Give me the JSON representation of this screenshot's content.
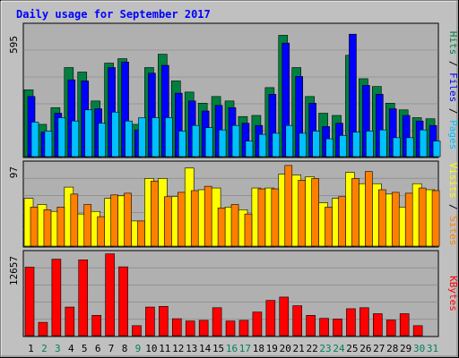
{
  "title": "Daily usage for September 2017",
  "colors": {
    "background": "#C0C0C0",
    "panel": "#B0B0B0",
    "grid": "#808080",
    "title": "#0000FF",
    "hits": "#008040",
    "files": "#0000FF",
    "pages": "#00C0FF",
    "visits": "#FFFF00",
    "sites": "#FF8000",
    "kbytes": "#FF0000",
    "weekday": "#000000",
    "weekend": "#00805C"
  },
  "chart_data": [
    {
      "type": "bar",
      "name": "hits-files-pages",
      "ymax_label": "595",
      "ymax": 595,
      "legend": [
        {
          "key": "pages",
          "label": "Pages"
        },
        {
          "key": "files",
          "label": "Files"
        },
        {
          "key": "hits",
          "label": "Hits"
        }
      ],
      "series": [
        {
          "key": "hits",
          "values": [
            300,
            145,
            220,
            400,
            380,
            250,
            420,
            440,
            145,
            400,
            460,
            340,
            290,
            240,
            270,
            250,
            180,
            185,
            310,
            545,
            400,
            270,
            195,
            185,
            455,
            350,
            315,
            240,
            210,
            175,
            170
          ]
        },
        {
          "key": "files",
          "values": [
            270,
            110,
            195,
            345,
            340,
            215,
            400,
            425,
            120,
            375,
            410,
            285,
            250,
            205,
            230,
            220,
            150,
            140,
            280,
            510,
            360,
            240,
            135,
            150,
            550,
            320,
            280,
            215,
            185,
            160,
            140
          ]
        },
        {
          "key": "pages",
          "values": [
            155,
            115,
            175,
            160,
            210,
            150,
            200,
            160,
            175,
            175,
            175,
            115,
            140,
            130,
            120,
            140,
            70,
            100,
            105,
            140,
            105,
            115,
            80,
            95,
            110,
            115,
            120,
            85,
            85,
            120,
            70
          ]
        }
      ]
    },
    {
      "type": "bar",
      "name": "visits-sites",
      "ymax_label": "97",
      "ymax": 97,
      "legend": [
        {
          "key": "sites",
          "label": "Sites"
        },
        {
          "key": "visits",
          "label": "Visits"
        }
      ],
      "series": [
        {
          "key": "visits",
          "values": [
            55,
            48,
            40,
            68,
            37,
            40,
            55,
            58,
            29,
            78,
            78,
            57,
            90,
            65,
            67,
            45,
            42,
            67,
            67,
            83,
            82,
            80,
            50,
            55,
            85,
            72,
            72,
            60,
            45,
            72,
            65
          ]
        },
        {
          "key": "sites",
          "values": [
            45,
            42,
            45,
            60,
            48,
            34,
            59,
            61,
            29,
            75,
            57,
            62,
            64,
            69,
            44,
            48,
            37,
            66,
            66,
            93,
            76,
            78,
            45,
            57,
            78,
            86,
            65,
            62,
            61,
            67,
            64
          ]
        }
      ]
    },
    {
      "type": "bar",
      "name": "kbytes",
      "ymax_label": "12657",
      "ymax": 12657,
      "legend": [
        {
          "key": "kbytes",
          "label": "KBytes"
        }
      ],
      "series": [
        {
          "key": "kbytes",
          "values": [
            10300,
            2000,
            11500,
            4300,
            11400,
            3050,
            12300,
            10350,
            1500,
            4300,
            4400,
            2550,
            2200,
            2300,
            4200,
            2200,
            2300,
            3550,
            5300,
            5800,
            4500,
            3050,
            2600,
            2500,
            4050,
            4200,
            3300,
            2350,
            3300,
            1500,
            0
          ]
        }
      ]
    }
  ],
  "days": [
    "1",
    "2",
    "3",
    "4",
    "5",
    "6",
    "7",
    "8",
    "9",
    "10",
    "11",
    "12",
    "13",
    "14",
    "15",
    "16",
    "17",
    "18",
    "19",
    "20",
    "21",
    "22",
    "23",
    "24",
    "25",
    "26",
    "27",
    "28",
    "29",
    "30",
    "31"
  ],
  "weekend_days": [
    "2",
    "3",
    "9",
    "16",
    "17",
    "23",
    "24",
    "30",
    "31"
  ]
}
